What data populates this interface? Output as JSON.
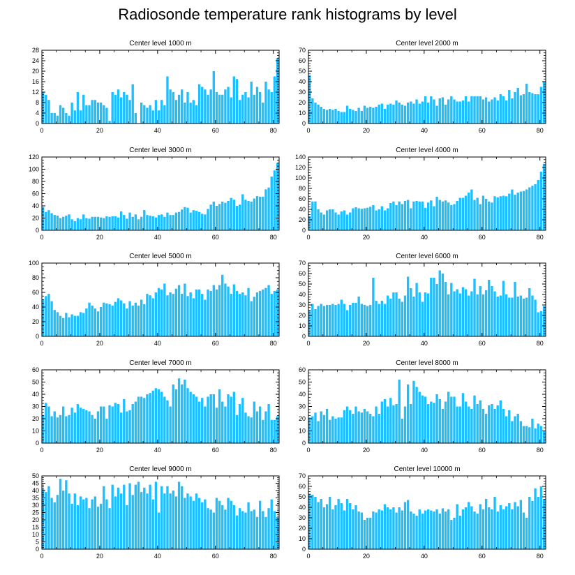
{
  "title": "Radiosonde temperature rank histograms by level",
  "colors": {
    "bar": "#1ebeff",
    "axis": "#000000",
    "background": "#ffffff"
  },
  "chart_data": [
    {
      "type": "bar",
      "title": "Center level 1000 m",
      "ylim": [
        0,
        28
      ],
      "yticks": [
        0,
        4,
        8,
        12,
        16,
        20,
        24,
        28
      ],
      "xlim": [
        0,
        82
      ],
      "xticks": [
        0,
        20,
        40,
        60,
        80
      ],
      "x_start": 0,
      "values": [
        12,
        11,
        9,
        4,
        4,
        3,
        7,
        6,
        4,
        3,
        8,
        5,
        12,
        5,
        11,
        7,
        7,
        9,
        9,
        8,
        8,
        7,
        6,
        1,
        12,
        11,
        13,
        10,
        12,
        11,
        9,
        15,
        4,
        0,
        8,
        7,
        6,
        7,
        5,
        9,
        5,
        9,
        7,
        18,
        13,
        12,
        9,
        11,
        13,
        8,
        12,
        8,
        9,
        7,
        15,
        14,
        13,
        11,
        13,
        20,
        12,
        11,
        11,
        13,
        14,
        10,
        18,
        17,
        9,
        11,
        12,
        10,
        16,
        11,
        14,
        12,
        8,
        16,
        13,
        12,
        18,
        25,
        25
      ]
    },
    {
      "type": "bar",
      "title": "Center level 2000 m",
      "ylim": [
        0,
        70
      ],
      "yticks": [
        0,
        10,
        20,
        30,
        40,
        50,
        60,
        70
      ],
      "xlim": [
        0,
        82
      ],
      "xticks": [
        0,
        20,
        40,
        60,
        80
      ],
      "x_start": 0,
      "values": [
        46,
        24,
        20,
        18,
        16,
        14,
        13,
        14,
        13,
        14,
        12,
        11,
        11,
        17,
        14,
        13,
        12,
        15,
        12,
        17,
        15,
        16,
        15,
        16,
        18,
        19,
        14,
        18,
        19,
        18,
        22,
        20,
        18,
        17,
        20,
        21,
        19,
        23,
        19,
        21,
        26,
        20,
        26,
        23,
        17,
        24,
        25,
        18,
        23,
        26,
        23,
        21,
        21,
        22,
        26,
        21,
        26,
        26,
        26,
        26,
        23,
        25,
        21,
        23,
        25,
        22,
        28,
        26,
        22,
        32,
        24,
        30,
        34,
        27,
        28,
        38,
        30,
        29,
        28,
        28,
        35,
        40,
        62
      ]
    },
    {
      "type": "bar",
      "title": "Center level 3000 m",
      "ylim": [
        0,
        120
      ],
      "yticks": [
        0,
        20,
        40,
        60,
        80,
        100,
        120
      ],
      "xlim": [
        0,
        82
      ],
      "xticks": [
        0,
        20,
        40,
        60,
        80
      ],
      "x_start": 0,
      "values": [
        38,
        30,
        33,
        28,
        25,
        24,
        20,
        22,
        24,
        26,
        18,
        15,
        20,
        18,
        26,
        20,
        19,
        22,
        22,
        22,
        21,
        20,
        23,
        22,
        23,
        23,
        21,
        31,
        25,
        19,
        29,
        22,
        26,
        18,
        22,
        33,
        25,
        24,
        23,
        21,
        25,
        26,
        22,
        29,
        25,
        25,
        29,
        30,
        34,
        38,
        37,
        29,
        33,
        32,
        30,
        27,
        26,
        35,
        42,
        47,
        40,
        43,
        47,
        45,
        48,
        53,
        50,
        40,
        42,
        59,
        50,
        48,
        47,
        52,
        56,
        55,
        55,
        67,
        70,
        88,
        98,
        110,
        108
      ]
    },
    {
      "type": "bar",
      "title": "Center level 4000 m",
      "ylim": [
        0,
        140
      ],
      "yticks": [
        0,
        20,
        40,
        60,
        80,
        100,
        120,
        140
      ],
      "xlim": [
        0,
        82
      ],
      "xticks": [
        0,
        20,
        40,
        60,
        80
      ],
      "x_start": 0,
      "values": [
        27,
        55,
        55,
        40,
        34,
        30,
        38,
        40,
        40,
        34,
        30,
        36,
        38,
        30,
        34,
        42,
        44,
        42,
        41,
        42,
        43,
        45,
        48,
        38,
        40,
        46,
        38,
        42,
        52,
        55,
        48,
        55,
        50,
        56,
        58,
        42,
        55,
        56,
        55,
        55,
        43,
        53,
        57,
        46,
        64,
        58,
        55,
        57,
        53,
        48,
        50,
        56,
        62,
        62,
        66,
        72,
        78,
        58,
        62,
        50,
        66,
        60,
        55,
        53,
        65,
        63,
        65,
        66,
        65,
        70,
        78,
        68,
        72,
        74,
        75,
        78,
        82,
        85,
        88,
        96,
        112,
        127,
        138
      ]
    },
    {
      "type": "bar",
      "title": "Center level 5000 m",
      "ylim": [
        0,
        100
      ],
      "yticks": [
        0,
        20,
        40,
        60,
        80,
        100
      ],
      "xlim": [
        0,
        82
      ],
      "xticks": [
        0,
        20,
        40,
        60,
        80
      ],
      "x_start": 0,
      "values": [
        50,
        55,
        58,
        48,
        36,
        33,
        28,
        25,
        32,
        26,
        30,
        28,
        28,
        33,
        32,
        38,
        46,
        42,
        38,
        34,
        40,
        46,
        45,
        44,
        42,
        47,
        52,
        49,
        45,
        38,
        48,
        42,
        46,
        42,
        50,
        44,
        58,
        56,
        52,
        60,
        66,
        64,
        72,
        56,
        60,
        58,
        65,
        70,
        58,
        72,
        55,
        60,
        52,
        64,
        64,
        58,
        50,
        64,
        62,
        70,
        64,
        70,
        84,
        72,
        68,
        58,
        71,
        62,
        58,
        60,
        56,
        66,
        48,
        54,
        60,
        62,
        64,
        66,
        70,
        58,
        62,
        64,
        55
      ]
    },
    {
      "type": "bar",
      "title": "Center level 6000 m",
      "ylim": [
        0,
        70
      ],
      "yticks": [
        0,
        10,
        20,
        30,
        40,
        50,
        60,
        70
      ],
      "xlim": [
        0,
        82
      ],
      "xticks": [
        0,
        20,
        40,
        60,
        80
      ],
      "x_start": 0,
      "values": [
        25,
        31,
        26,
        29,
        31,
        29,
        30,
        30,
        31,
        30,
        31,
        35,
        31,
        25,
        30,
        32,
        32,
        38,
        31,
        30,
        29,
        30,
        56,
        34,
        31,
        34,
        31,
        39,
        36,
        42,
        42,
        36,
        33,
        39,
        57,
        46,
        38,
        51,
        42,
        33,
        42,
        41,
        56,
        56,
        50,
        63,
        60,
        52,
        40,
        51,
        43,
        45,
        41,
        47,
        45,
        39,
        43,
        55,
        40,
        48,
        40,
        44,
        54,
        48,
        43,
        38,
        39,
        53,
        40,
        37,
        37,
        52,
        38,
        39,
        36,
        37,
        46,
        39,
        35,
        23,
        24,
        29,
        29
      ]
    },
    {
      "type": "bar",
      "title": "Center level 7000 m",
      "ylim": [
        0,
        60
      ],
      "yticks": [
        0,
        10,
        20,
        30,
        40,
        50,
        60
      ],
      "xlim": [
        0,
        82
      ],
      "xticks": [
        0,
        20,
        40,
        60,
        80
      ],
      "x_start": 0,
      "values": [
        23,
        33,
        30,
        22,
        26,
        21,
        23,
        30,
        22,
        23,
        29,
        25,
        32,
        29,
        28,
        27,
        26,
        23,
        20,
        26,
        30,
        30,
        20,
        31,
        30,
        33,
        32,
        25,
        36,
        26,
        27,
        32,
        34,
        38,
        38,
        37,
        40,
        41,
        43,
        45,
        44,
        42,
        38,
        35,
        30,
        48,
        44,
        53,
        48,
        52,
        45,
        42,
        40,
        38,
        34,
        37,
        30,
        38,
        40,
        40,
        29,
        44,
        34,
        30,
        40,
        38,
        42,
        23,
        32,
        37,
        25,
        22,
        21,
        34,
        26,
        30,
        19,
        26,
        32,
        19,
        19,
        22,
        18
      ]
    },
    {
      "type": "bar",
      "title": "Center level 8000 m",
      "ylim": [
        0,
        60
      ],
      "yticks": [
        0,
        10,
        20,
        30,
        40,
        50,
        60
      ],
      "xlim": [
        0,
        82
      ],
      "xticks": [
        0,
        20,
        40,
        60,
        80
      ],
      "x_start": 0,
      "values": [
        21,
        22,
        25,
        18,
        26,
        23,
        28,
        19,
        22,
        20,
        21,
        21,
        27,
        30,
        27,
        24,
        30,
        26,
        25,
        28,
        26,
        24,
        22,
        30,
        24,
        34,
        36,
        30,
        37,
        31,
        32,
        52,
        20,
        30,
        48,
        32,
        51,
        46,
        42,
        39,
        38,
        32,
        34,
        33,
        40,
        36,
        28,
        34,
        42,
        38,
        38,
        30,
        30,
        41,
        34,
        30,
        28,
        39,
        32,
        35,
        28,
        24,
        31,
        32,
        28,
        31,
        35,
        28,
        22,
        27,
        18,
        22,
        24,
        18,
        14,
        14,
        13,
        20,
        12,
        16,
        14,
        10,
        11
      ]
    },
    {
      "type": "bar",
      "title": "Center level 9000 m",
      "ylim": [
        0,
        50
      ],
      "yticks": [
        0,
        5,
        10,
        15,
        20,
        25,
        30,
        35,
        40,
        45,
        50
      ],
      "xlim": [
        0,
        82
      ],
      "xticks": [
        0,
        20,
        40,
        60,
        80
      ],
      "x_start": 0,
      "values": [
        41,
        39,
        43,
        35,
        32,
        37,
        48,
        40,
        47,
        38,
        31,
        38,
        30,
        36,
        34,
        35,
        28,
        34,
        36,
        29,
        31,
        43,
        34,
        28,
        44,
        36,
        42,
        38,
        44,
        30,
        45,
        37,
        44,
        46,
        39,
        42,
        38,
        44,
        34,
        46,
        25,
        43,
        38,
        43,
        38,
        40,
        36,
        46,
        43,
        35,
        38,
        36,
        33,
        38,
        35,
        32,
        34,
        28,
        27,
        25,
        35,
        33,
        30,
        27,
        35,
        33,
        30,
        23,
        28,
        26,
        25,
        32,
        26,
        27,
        22,
        33,
        26,
        22,
        28,
        34,
        26,
        22,
        25
      ]
    },
    {
      "type": "bar",
      "title": "Center level 10000 m",
      "ylim": [
        0,
        70
      ],
      "yticks": [
        0,
        10,
        20,
        30,
        40,
        50,
        60,
        70
      ],
      "xlim": [
        0,
        82
      ],
      "xticks": [
        0,
        20,
        40,
        60,
        80
      ],
      "x_start": 0,
      "values": [
        53,
        52,
        50,
        45,
        48,
        40,
        43,
        50,
        38,
        42,
        48,
        44,
        37,
        48,
        44,
        38,
        42,
        36,
        35,
        28,
        30,
        30,
        36,
        35,
        38,
        37,
        43,
        40,
        38,
        40,
        35,
        40,
        37,
        45,
        47,
        36,
        34,
        32,
        38,
        34,
        37,
        38,
        37,
        36,
        38,
        34,
        39,
        36,
        38,
        28,
        30,
        43,
        32,
        38,
        40,
        45,
        41,
        36,
        34,
        43,
        38,
        48,
        40,
        38,
        50,
        36,
        42,
        38,
        41,
        44,
        38,
        45,
        41,
        47,
        35,
        30,
        50,
        46,
        58,
        50,
        60,
        48,
        45,
        38,
        68
      ]
    }
  ]
}
